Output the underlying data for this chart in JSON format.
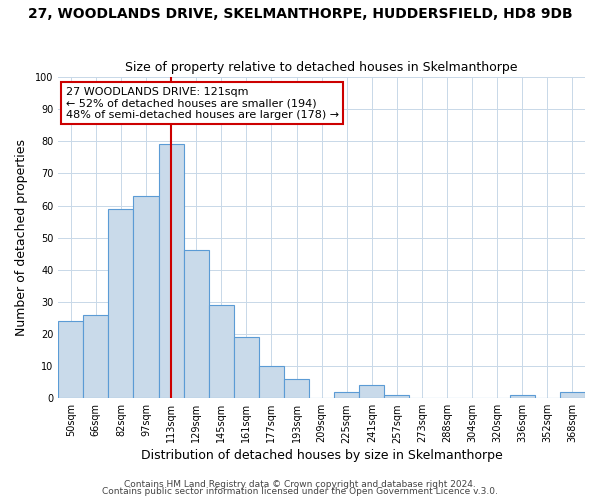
{
  "title": "27, WOODLANDS DRIVE, SKELMANTHORPE, HUDDERSFIELD, HD8 9DB",
  "subtitle": "Size of property relative to detached houses in Skelmanthorpe",
  "xlabel": "Distribution of detached houses by size in Skelmanthorpe",
  "ylabel": "Number of detached properties",
  "footer_line1": "Contains HM Land Registry data © Crown copyright and database right 2024.",
  "footer_line2": "Contains public sector information licensed under the Open Government Licence v.3.0.",
  "bin_labels": [
    "50sqm",
    "66sqm",
    "82sqm",
    "97sqm",
    "113sqm",
    "129sqm",
    "145sqm",
    "161sqm",
    "177sqm",
    "193sqm",
    "209sqm",
    "225sqm",
    "241sqm",
    "257sqm",
    "273sqm",
    "288sqm",
    "304sqm",
    "320sqm",
    "336sqm",
    "352sqm",
    "368sqm"
  ],
  "bar_values": [
    24,
    26,
    59,
    63,
    79,
    46,
    29,
    19,
    10,
    6,
    0,
    2,
    4,
    1,
    0,
    0,
    0,
    0,
    1,
    0,
    2
  ],
  "bar_color": "#c9daea",
  "bar_edge_color": "#5b9bd5",
  "property_line_label": "27 WOODLANDS DRIVE: 121sqm",
  "annotation_line2": "← 52% of detached houses are smaller (194)",
  "annotation_line3": "48% of semi-detached houses are larger (178) →",
  "annotation_box_color": "#ffffff",
  "annotation_box_edge": "#cc0000",
  "vline_color": "#cc0000",
  "ylim": [
    0,
    100
  ],
  "background_color": "#ffffff",
  "grid_color": "#c8d8e8",
  "title_fontsize": 10,
  "subtitle_fontsize": 9,
  "axis_label_fontsize": 9,
  "tick_fontsize": 7,
  "annotation_fontsize": 8,
  "footer_fontsize": 6.5
}
